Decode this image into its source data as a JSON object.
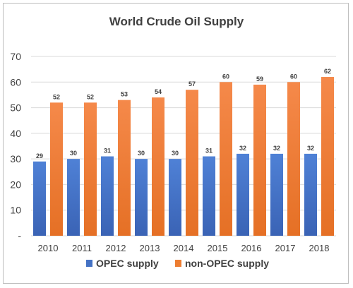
{
  "chart_data": {
    "type": "bar",
    "title": "World Crude Oil Supply",
    "categories": [
      "2010",
      "2011",
      "2012",
      "2013",
      "2014",
      "2015",
      "2016",
      "2017",
      "2018"
    ],
    "series": [
      {
        "name": "OPEC supply",
        "color": "#4472c4",
        "values": [
          29,
          30,
          31,
          30,
          30,
          31,
          32,
          32,
          32
        ]
      },
      {
        "name": "non-OPEC supply",
        "color": "#ed7d31",
        "values": [
          52,
          52,
          53,
          54,
          57,
          60,
          59,
          60,
          62
        ]
      }
    ],
    "yticks": [
      "-",
      "10",
      "20",
      "30",
      "40",
      "50",
      "60",
      "70"
    ],
    "ylim": [
      0,
      70
    ],
    "grid": true,
    "legend_position": "bottom"
  }
}
